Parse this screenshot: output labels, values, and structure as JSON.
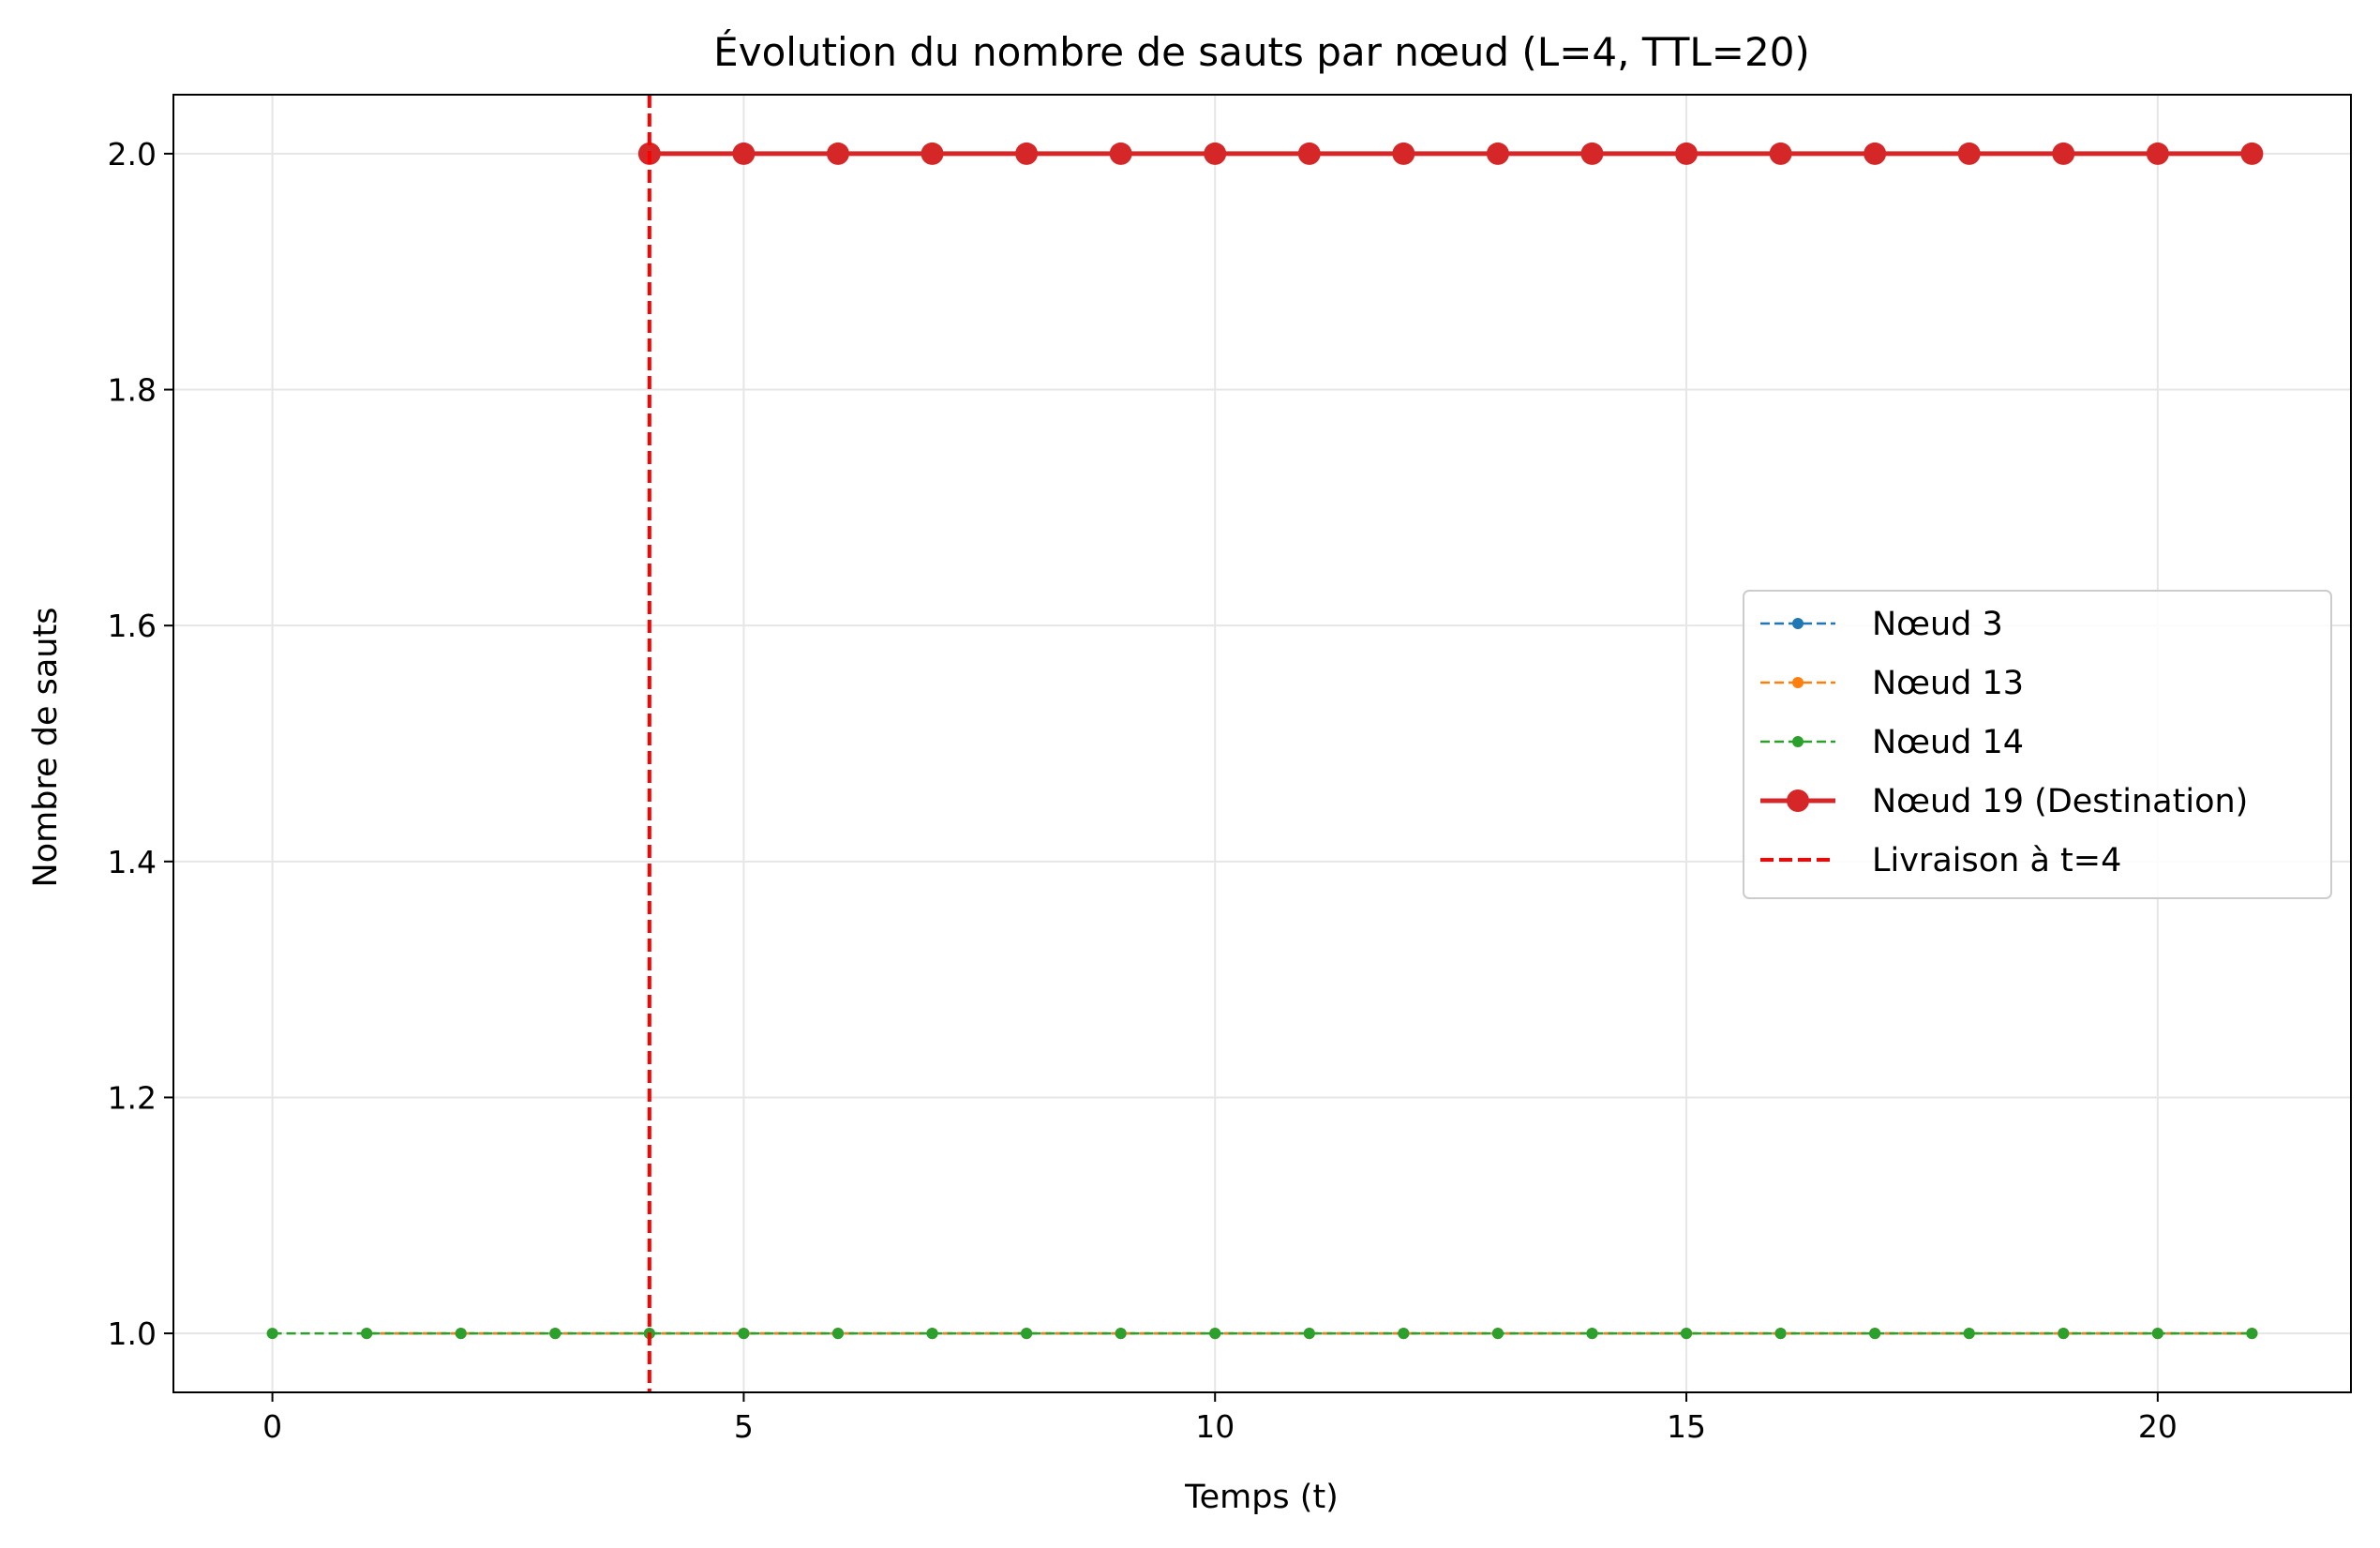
{
  "chart_data": {
    "type": "line",
    "title": "Évolution du nombre de sauts par nœud (L=4, TTL=20)",
    "xlabel": "Temps (t)",
    "ylabel": "Nombre de sauts",
    "xlim": [
      -1.05,
      22.05
    ],
    "ylim": [
      0.95,
      2.05
    ],
    "xticks": [
      0,
      5,
      10,
      15,
      20
    ],
    "xtick_labels": [
      "0",
      "5",
      "10",
      "15",
      "20"
    ],
    "yticks": [
      1.0,
      1.2,
      1.4,
      1.6,
      1.8,
      2.0
    ],
    "ytick_labels": [
      "1.0",
      "1.2",
      "1.4",
      "1.6",
      "1.8",
      "2.0"
    ],
    "grid": true,
    "legend_position": "center-right",
    "series": [
      {
        "name": "Nœud 3",
        "color": "#1f77b4",
        "style": "dashed",
        "marker": "small-circle",
        "x": [
          1,
          2,
          3,
          4,
          5,
          6,
          7,
          8,
          9,
          10,
          11,
          12,
          13,
          14,
          15,
          16,
          17,
          18,
          19,
          20,
          21
        ],
        "y": [
          1,
          1,
          1,
          1,
          1,
          1,
          1,
          1,
          1,
          1,
          1,
          1,
          1,
          1,
          1,
          1,
          1,
          1,
          1,
          1,
          1
        ]
      },
      {
        "name": "Nœud 13",
        "color": "#ff7f0e",
        "style": "dashed",
        "marker": "small-circle",
        "x": [
          1,
          2,
          3,
          4,
          5,
          6,
          7,
          8,
          9,
          10,
          11,
          12,
          13,
          14,
          15,
          16,
          17,
          18,
          19,
          20,
          21
        ],
        "y": [
          1,
          1,
          1,
          1,
          1,
          1,
          1,
          1,
          1,
          1,
          1,
          1,
          1,
          1,
          1,
          1,
          1,
          1,
          1,
          1,
          1
        ]
      },
      {
        "name": "Nœud 14",
        "color": "#2ca02c",
        "style": "dashed",
        "marker": "small-circle",
        "x": [
          0,
          1,
          2,
          3,
          4,
          5,
          6,
          7,
          8,
          9,
          10,
          11,
          12,
          13,
          14,
          15,
          16,
          17,
          18,
          19,
          20,
          21
        ],
        "y": [
          1,
          1,
          1,
          1,
          1,
          1,
          1,
          1,
          1,
          1,
          1,
          1,
          1,
          1,
          1,
          1,
          1,
          1,
          1,
          1,
          1,
          1
        ]
      },
      {
        "name": "Nœud 19 (Destination)",
        "color": "#d62728",
        "style": "solid-thick",
        "marker": "large-circle",
        "x": [
          4,
          5,
          6,
          7,
          8,
          9,
          10,
          11,
          12,
          13,
          14,
          15,
          16,
          17,
          18,
          19,
          20,
          21
        ],
        "y": [
          2,
          2,
          2,
          2,
          2,
          2,
          2,
          2,
          2,
          2,
          2,
          2,
          2,
          2,
          2,
          2,
          2,
          2
        ]
      }
    ],
    "vline": {
      "name": "Livraison à t=4",
      "x": 4,
      "color": "#ff0000",
      "style": "dashed"
    }
  }
}
